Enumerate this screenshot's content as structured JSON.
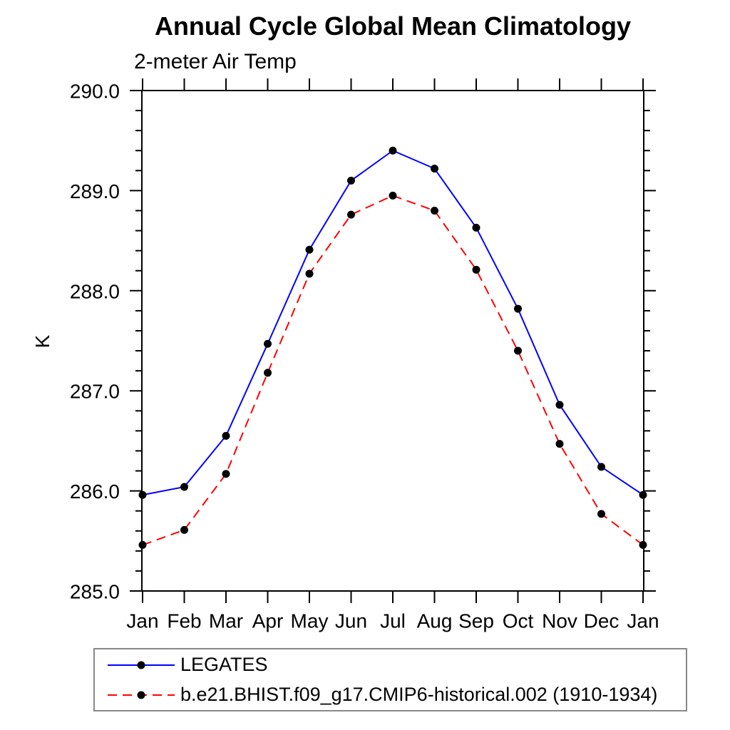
{
  "title": "Annual Cycle Global Mean Climatology",
  "subtitle": "2-meter Air Temp",
  "chart_data": {
    "type": "line",
    "title": "Annual Cycle Global Mean Climatology",
    "subtitle": "2-meter Air Temp",
    "ylabel": "K",
    "xlabel": "",
    "categories": [
      "Jan",
      "Feb",
      "Mar",
      "Apr",
      "May",
      "Jun",
      "Jul",
      "Aug",
      "Sep",
      "Oct",
      "Nov",
      "Dec",
      "Jan"
    ],
    "ylim": [
      285.0,
      290.0
    ],
    "ytick_major": 1.0,
    "ytick_minor": 0.2,
    "ytick_labels": [
      "285.0",
      "286.0",
      "287.0",
      "288.0",
      "289.0",
      "290.0"
    ],
    "grid": false,
    "legend_position": "bottom-left",
    "series": [
      {
        "name": "LEGATES",
        "color": "#0000ff",
        "line_style": "solid",
        "marker": "filled-circle",
        "marker_color": "#000000",
        "values": [
          285.96,
          286.04,
          286.55,
          287.47,
          288.41,
          289.1,
          289.4,
          289.22,
          288.63,
          287.82,
          286.86,
          286.24,
          285.96
        ]
      },
      {
        "name": "b.e21.BHIST.f09_g17.CMIP6-historical.002 (1910-1934)",
        "color": "#ff0000",
        "line_style": "dashed",
        "marker": "filled-circle",
        "marker_color": "#000000",
        "values": [
          285.46,
          285.61,
          286.17,
          287.18,
          288.17,
          288.76,
          288.95,
          288.8,
          288.21,
          287.4,
          286.47,
          285.77,
          285.46
        ]
      }
    ]
  },
  "colors": {
    "axis": "#000000",
    "text": "#000000",
    "legend_border": "#888888",
    "background": "#ffffff"
  }
}
